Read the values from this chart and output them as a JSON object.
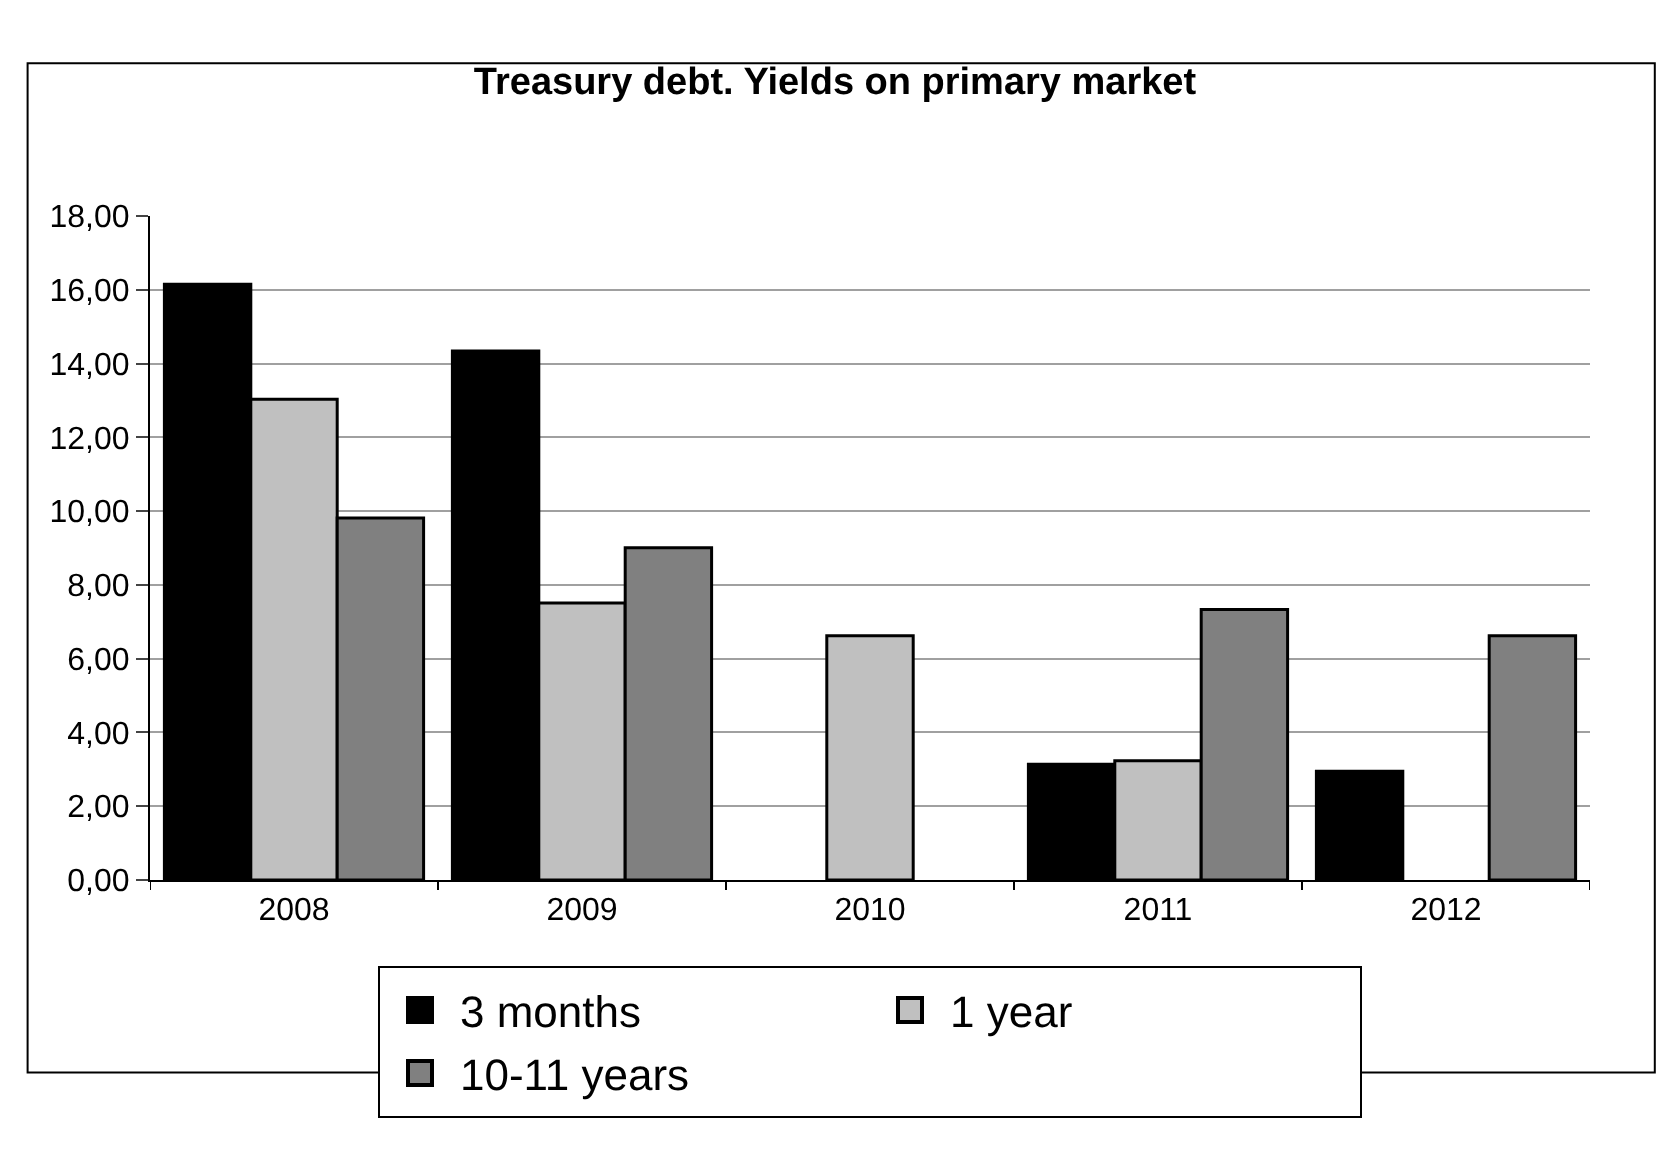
{
  "chart_data": {
    "type": "bar",
    "title": "Treasury debt. Yields on primary market",
    "categories": [
      "2008",
      "2009",
      "2010",
      "2011",
      "2012"
    ],
    "series": [
      {
        "name": "3 months",
        "color": "#000000",
        "values": [
          16.15,
          14.34,
          null,
          3.14,
          2.95
        ]
      },
      {
        "name": "1 year",
        "color": "#c0c0c0",
        "values": [
          13.03,
          7.51,
          6.62,
          3.23,
          null
        ]
      },
      {
        "name": "10-11 years",
        "color": "#808080",
        "values": [
          9.81,
          9.01,
          null,
          7.33,
          6.62
        ]
      }
    ],
    "ylim": [
      0,
      18
    ],
    "yticks": [
      {
        "value": 0,
        "label": "0,00"
      },
      {
        "value": 2,
        "label": "2,00"
      },
      {
        "value": 4,
        "label": "4,00"
      },
      {
        "value": 6,
        "label": "6,00"
      },
      {
        "value": 8,
        "label": "8,00"
      },
      {
        "value": 10,
        "label": "10,00"
      },
      {
        "value": 12,
        "label": "12,00"
      },
      {
        "value": 14,
        "label": "14,00"
      },
      {
        "value": 16,
        "label": "16,00"
      },
      {
        "value": 18,
        "label": "18,00"
      }
    ],
    "grid": "y",
    "legend": "bottom"
  }
}
